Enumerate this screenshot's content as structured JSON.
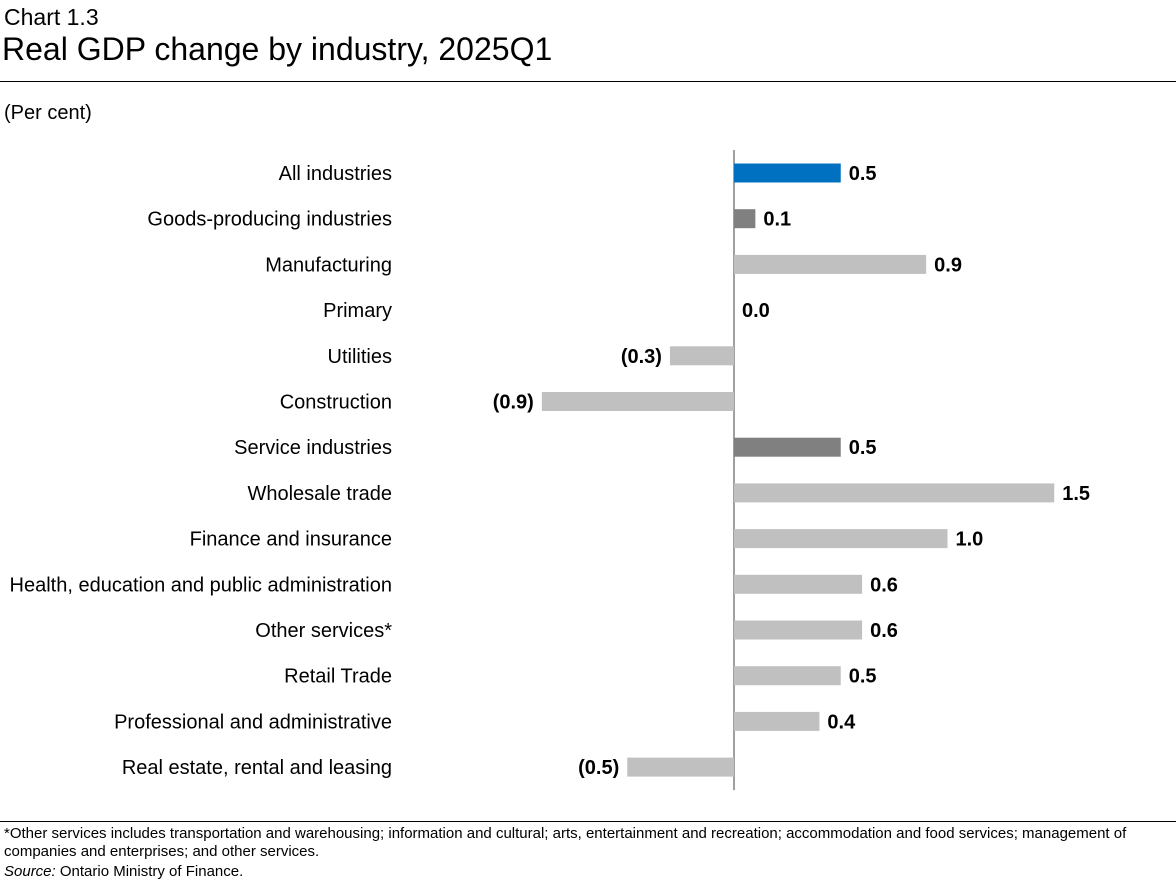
{
  "header": {
    "chart_number": "Chart 1.3",
    "title": "Real GDP change by industry, 2025Q1",
    "units_label": "(Per cent)"
  },
  "colors": {
    "total": "#0070c0",
    "aggregate": "#808080",
    "industry": "#c0c0c0",
    "axis": "#808080"
  },
  "chart_data": {
    "type": "bar",
    "orientation": "horizontal",
    "title": "Real GDP change by industry, 2025Q1",
    "xlabel": "",
    "ylabel": "(Per cent)",
    "xlim": [
      -1.2,
      1.8
    ],
    "categories": [
      "All industries",
      "Goods-producing industries",
      "Manufacturing",
      "Primary",
      "Utilities",
      "Construction",
      "Service industries",
      "Wholesale trade",
      "Finance and insurance",
      "Health, education and public administration",
      "Other services*",
      "Retail Trade",
      "Professional and administrative",
      "Real estate, rental and leasing"
    ],
    "values": [
      0.5,
      0.1,
      0.9,
      0.0,
      -0.3,
      -0.9,
      0.5,
      1.5,
      1.0,
      0.6,
      0.6,
      0.5,
      0.4,
      -0.5
    ],
    "value_labels": [
      "0.5",
      "0.1",
      "0.9",
      "0.0",
      "(0.3)",
      "(0.9)",
      "0.5",
      "1.5",
      "1.0",
      "0.6",
      "0.6",
      "0.5",
      "0.4",
      "(0.5)"
    ],
    "bar_kinds": [
      "total",
      "aggregate",
      "industry",
      "industry",
      "industry",
      "industry",
      "aggregate",
      "industry",
      "industry",
      "industry",
      "industry",
      "industry",
      "industry",
      "industry"
    ]
  },
  "footer": {
    "footnote": "*Other services includes transportation and warehousing; information and cultural; arts, entertainment and recreation; accommodation and food services; management of companies and enterprises; and other services.",
    "source_label": "Source:",
    "source_text": " Ontario Ministry of Finance."
  }
}
